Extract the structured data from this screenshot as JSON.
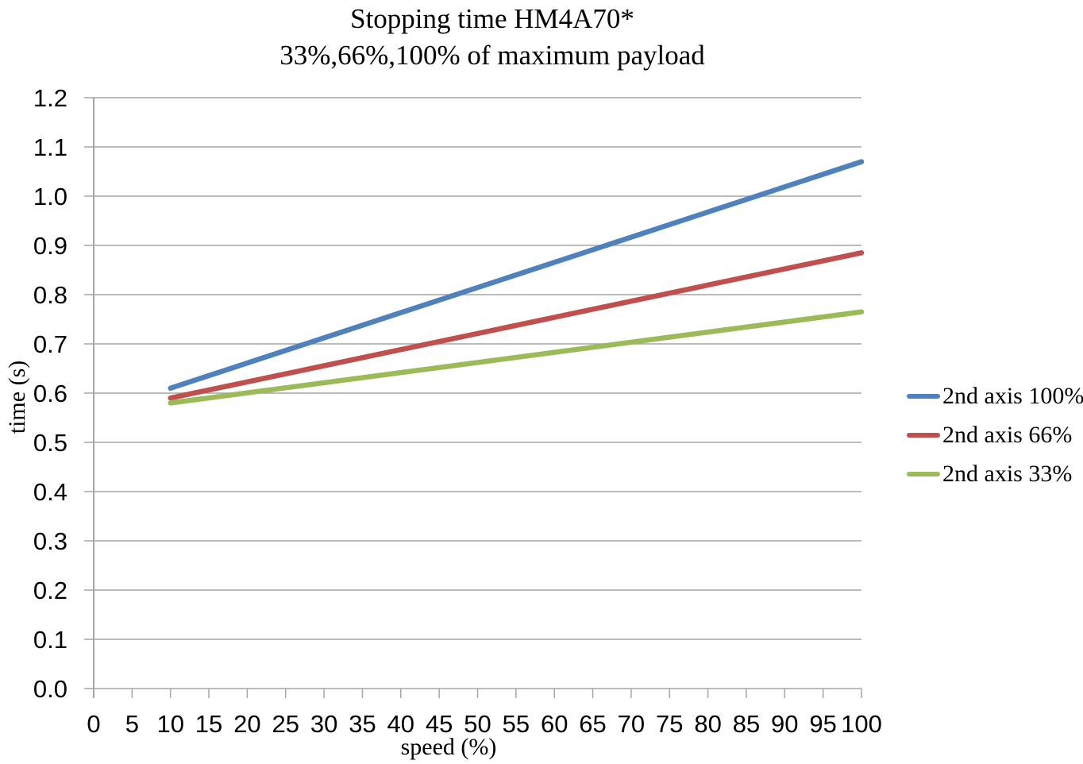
{
  "page": {
    "background": "#FFFFFF",
    "text_color": "#000000"
  },
  "chart_data": {
    "type": "line",
    "title": "Stopping time HM4A70*",
    "subtitle": "33%,66%,100% of maximum payload",
    "xlabel": "speed (%)",
    "ylabel": "time (s)",
    "xlim": [
      0,
      100
    ],
    "x_tick_step": 5,
    "ylim": [
      0,
      1.2
    ],
    "y_tick_step": 0.1,
    "y_tick_decimals": 1,
    "grid": "horizontal",
    "grid_color": "#A6A6A6",
    "axis_color": "#A6A6A6",
    "tick_label_color": "#000000",
    "legend_position": "right",
    "line_width": 6.5,
    "series": [
      {
        "name": "2nd axis 100%",
        "color": "#4F81BD",
        "x": [
          10,
          100
        ],
        "values": [
          0.61,
          1.07
        ]
      },
      {
        "name": "2nd axis 66%",
        "color": "#C0504D",
        "x": [
          10,
          100
        ],
        "values": [
          0.59,
          0.885
        ]
      },
      {
        "name": "2nd axis 33%",
        "color": "#9BBB59",
        "x": [
          10,
          100
        ],
        "values": [
          0.58,
          0.765
        ]
      }
    ]
  }
}
